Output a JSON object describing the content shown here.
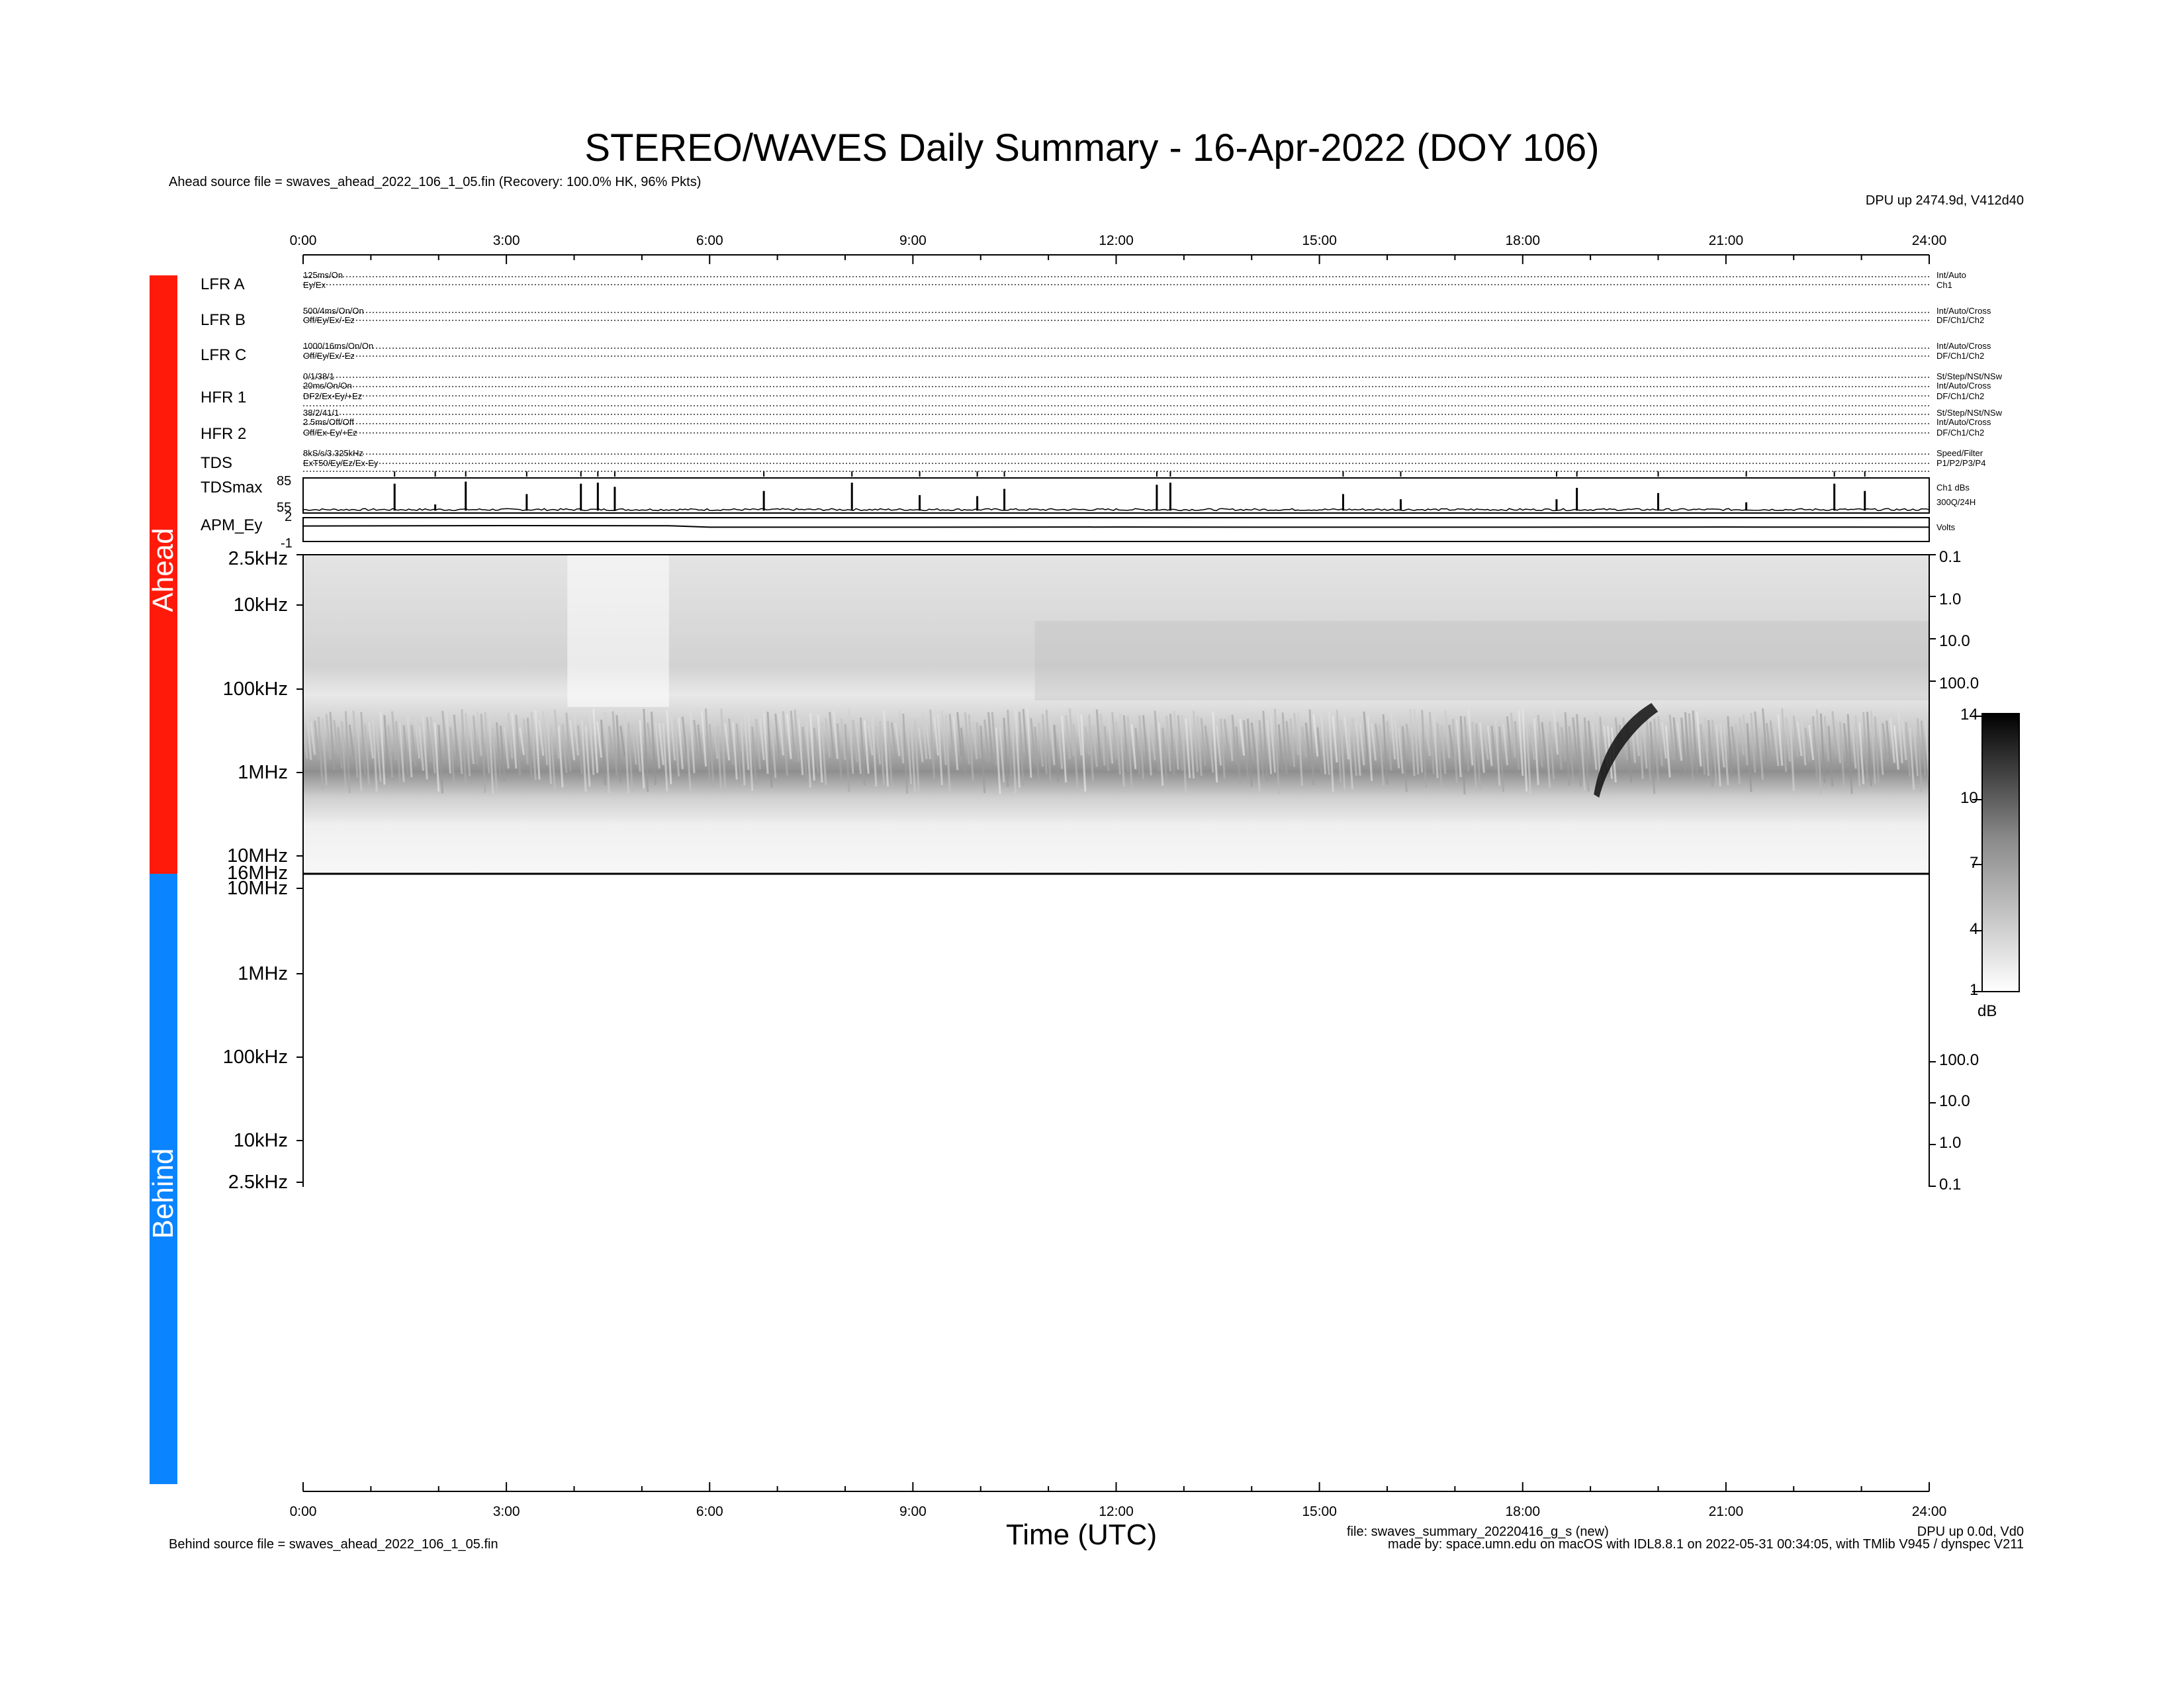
{
  "title": "STEREO/WAVES Daily Summary - 16-Apr-2022 (DOY 106)",
  "ahead_source": "Ahead source file = swaves_ahead_2022_106_1_05.fin (Recovery: 100.0% HK,  96% Pkts)",
  "behind_source": "Behind source file = swaves_ahead_2022_106_1_05.fin",
  "dpu_ahead": "DPU up 2474.9d, V412d40",
  "dpu_behind": "DPU up 0.0d, Vd0",
  "file_info": "file: swaves_summary_20220416_g_s (new)",
  "made_by": "made by: space.umn.edu on macOS with IDL8.8.1 on 2022-05-31 00:34:05, with TMlib V945 / dynspec V211",
  "xlabel": "Time (UTC)",
  "time_ticks": [
    "0:00",
    "3:00",
    "6:00",
    "9:00",
    "12:00",
    "15:00",
    "18:00",
    "21:00",
    "24:00"
  ],
  "side_labels": {
    "ahead": "Ahead",
    "behind": "Behind"
  },
  "panels": [
    {
      "name": "LFR A",
      "left1": "125ms/On",
      "left2": "Ey/Ex",
      "right1": "Int/Auto",
      "right2": "Ch1"
    },
    {
      "name": "LFR B",
      "left1": "500/4ms/On/On",
      "left2": "Off/Ey/Ex/-Ez",
      "right1": "Int/Auto/Cross",
      "right2": "DF/Ch1/Ch2"
    },
    {
      "name": "LFR C",
      "left1": "1000/16ms/On/On",
      "left2": "Off/Ey/Ex/-Ez",
      "right1": "Int/Auto/Cross",
      "right2": "DF/Ch1/Ch2"
    },
    {
      "name": "HFR 1",
      "left1": "0/1/38/1",
      "left2": "20ms/On/On",
      "left3": "DF2/Ex-Ey/+Ez",
      "right1": "St/Step/NSt/NSw",
      "right2": "Int/Auto/Cross",
      "right3": "DF/Ch1/Ch2"
    },
    {
      "name": "HFR 2",
      "left1": "38/2/41/1",
      "left2": "2.5ms/Off/Off",
      "left3": "Off/Ex-Ey/+Ez",
      "right1": "St/Step/NSt/NSw",
      "right2": "Int/Auto/Cross",
      "right3": "DF/Ch1/Ch2"
    },
    {
      "name": "TDS",
      "left1": "8kS/s/3.325kHz",
      "left2": "ExT50/Ey/Ez/Ex-Ey",
      "right1": "Speed/Filter",
      "right2": "P1/P2/P3/P4"
    }
  ],
  "tdsmax": {
    "label": "TDSmax",
    "ticks": [
      "85",
      "55"
    ],
    "right1": "Ch1 dBs",
    "right2": "300Q/24H"
  },
  "apm": {
    "label": "APM_Ey",
    "ticks": [
      "2",
      "-1"
    ],
    "right": "Volts"
  },
  "ahead_freq_labels": [
    "2.5kHz",
    "10kHz",
    "100kHz",
    "1MHz",
    "10MHz",
    "16MHz"
  ],
  "behind_freq_labels": [
    "10MHz",
    "1MHz",
    "100kHz",
    "10kHz",
    "2.5kHz"
  ],
  "ahead_right_labels": [
    "0.1",
    "1.0",
    "10.0",
    "100.0"
  ],
  "behind_right_labels": [
    "100.0",
    "10.0",
    "1.0",
    "0.1"
  ],
  "colorbar": {
    "ticks": [
      "14",
      "10",
      "7",
      "4",
      "1"
    ],
    "unit": "dB"
  },
  "chart_data": [
    {
      "type": "line",
      "title": "TDSmax",
      "x_unit": "hours UTC",
      "xlim": [
        0,
        24
      ],
      "ylim": [
        55,
        85
      ],
      "baseline": 55,
      "spikes": [
        {
          "x": 1.35,
          "y": 82
        },
        {
          "x": 1.95,
          "y": 62
        },
        {
          "x": 2.4,
          "y": 84
        },
        {
          "x": 3.3,
          "y": 72
        },
        {
          "x": 4.1,
          "y": 82
        },
        {
          "x": 4.35,
          "y": 83
        },
        {
          "x": 4.6,
          "y": 79
        },
        {
          "x": 6.8,
          "y": 75
        },
        {
          "x": 8.1,
          "y": 83
        },
        {
          "x": 9.1,
          "y": 71
        },
        {
          "x": 9.95,
          "y": 70
        },
        {
          "x": 10.35,
          "y": 77
        },
        {
          "x": 12.6,
          "y": 81
        },
        {
          "x": 12.8,
          "y": 83
        },
        {
          "x": 15.35,
          "y": 72
        },
        {
          "x": 16.2,
          "y": 67
        },
        {
          "x": 18.5,
          "y": 67
        },
        {
          "x": 18.8,
          "y": 78
        },
        {
          "x": 20.0,
          "y": 73
        },
        {
          "x": 21.3,
          "y": 64
        },
        {
          "x": 22.6,
          "y": 82
        },
        {
          "x": 23.05,
          "y": 75
        }
      ]
    },
    {
      "type": "line",
      "title": "APM_Ey",
      "x_unit": "hours UTC",
      "xlim": [
        0,
        24
      ],
      "ylim": [
        -1,
        2
      ],
      "x": [
        0,
        3,
        5.4,
        6,
        9,
        12,
        15,
        18,
        21,
        24
      ],
      "y": [
        0.95,
        1.0,
        0.98,
        0.8,
        0.8,
        0.82,
        0.8,
        0.8,
        0.82,
        0.8
      ]
    },
    {
      "type": "heatmap",
      "title": "Ahead dynamic spectrum",
      "x_unit": "hours UTC",
      "xlim": [
        0,
        24
      ],
      "ylabels": [
        "2.5kHz",
        "10kHz",
        "100kHz",
        "1MHz",
        "10MHz",
        "16MHz"
      ],
      "zlim": [
        1,
        14
      ],
      "zlabel": "dB",
      "features": [
        {
          "kind": "radio burst",
          "start_hour": 19.1,
          "end_hour": 19.9,
          "freq_range": "1MHz-200kHz",
          "intensity": 14
        },
        {
          "kind": "background band",
          "freq": "1MHz",
          "intensity": 7
        }
      ]
    }
  ]
}
